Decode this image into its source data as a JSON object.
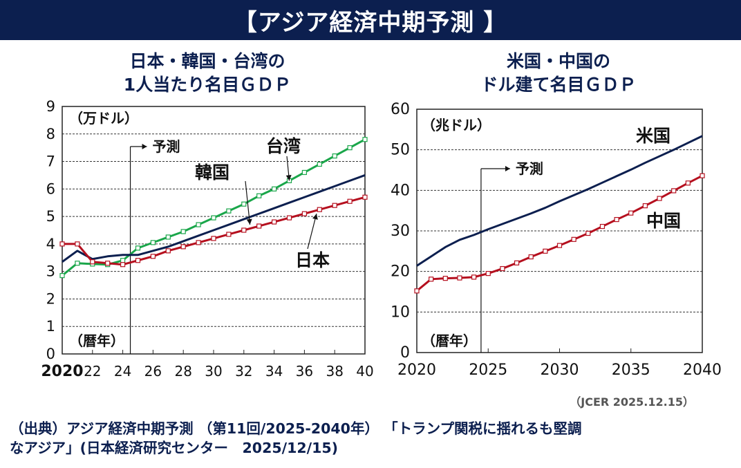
{
  "banner": {
    "title": "【アジア経済中期予測 】"
  },
  "left_title": {
    "line1": "日本・韓国・台湾の",
    "line2": "1人当たり名目ＧＤＰ"
  },
  "right_title": {
    "line1": "米国・中国の",
    "line2": "ドル建て名目ＧＤＰ"
  },
  "credit": "（JCER 2025.12.15）",
  "source": {
    "line1": "（出典）アジア経済中期予測 （第11回/2025-2040年） 「トランプ関税に揺れるも堅調",
    "line2": "なアジア」(日本経済研究センター　2025/12/15)"
  },
  "colors": {
    "navy": "#0c1f4f",
    "green": "#1aa64a",
    "red": "#b50f1e"
  },
  "chart_data": [
    {
      "type": "line",
      "ylabel": "（万ドル）",
      "xlabel": "（暦年）",
      "ylim": [
        0,
        9
      ],
      "xlim": [
        2020,
        2040
      ],
      "yticks": [
        "0",
        "1",
        "2",
        "3",
        "4",
        "5",
        "6",
        "7",
        "8",
        "9"
      ],
      "xticks": [
        {
          "v": 2020,
          "label": "2020"
        },
        {
          "v": 2022,
          "label": "22"
        },
        {
          "v": 2024,
          "label": "24"
        },
        {
          "v": 2026,
          "label": "26"
        },
        {
          "v": 2028,
          "label": "28"
        },
        {
          "v": 2030,
          "label": "30"
        },
        {
          "v": 2032,
          "label": "32"
        },
        {
          "v": 2034,
          "label": "34"
        },
        {
          "v": 2036,
          "label": "36"
        },
        {
          "v": 2038,
          "label": "38"
        },
        {
          "v": 2040,
          "label": "40"
        }
      ],
      "forecast": {
        "x": 2024.5,
        "label": "予測"
      },
      "grid": true,
      "series": [
        {
          "name": "台湾",
          "color": "#1aa64a",
          "marker": true,
          "x": [
            2020,
            2021,
            2022,
            2023,
            2024,
            2025,
            2026,
            2027,
            2028,
            2029,
            2030,
            2031,
            2032,
            2033,
            2034,
            2035,
            2036,
            2037,
            2038,
            2039,
            2040
          ],
          "y": [
            2.85,
            3.3,
            3.27,
            3.25,
            3.4,
            3.85,
            4.05,
            4.25,
            4.45,
            4.7,
            4.95,
            5.2,
            5.45,
            5.75,
            6.0,
            6.3,
            6.6,
            6.9,
            7.2,
            7.5,
            7.8
          ]
        },
        {
          "name": "韓国",
          "color": "#0c1f4f",
          "marker": false,
          "x": [
            2020,
            2021,
            2022,
            2023,
            2024,
            2025,
            2026,
            2027,
            2028,
            2029,
            2030,
            2031,
            2032,
            2033,
            2034,
            2035,
            2036,
            2037,
            2038,
            2039,
            2040
          ],
          "y": [
            3.35,
            3.75,
            3.45,
            3.55,
            3.6,
            3.6,
            3.75,
            3.9,
            4.1,
            4.3,
            4.5,
            4.7,
            4.9,
            5.1,
            5.3,
            5.5,
            5.7,
            5.9,
            6.1,
            6.3,
            6.5
          ]
        },
        {
          "name": "日本",
          "color": "#b50f1e",
          "marker": true,
          "x": [
            2020,
            2021,
            2022,
            2023,
            2024,
            2025,
            2026,
            2027,
            2028,
            2029,
            2030,
            2031,
            2032,
            2033,
            2034,
            2035,
            2036,
            2037,
            2038,
            2039,
            2040
          ],
          "y": [
            4.0,
            4.0,
            3.35,
            3.3,
            3.25,
            3.4,
            3.55,
            3.75,
            3.9,
            4.05,
            4.2,
            4.35,
            4.5,
            4.65,
            4.8,
            4.95,
            5.1,
            5.25,
            5.4,
            5.55,
            5.7
          ]
        }
      ],
      "labels": [
        {
          "series": "台湾",
          "text": "台湾"
        },
        {
          "series": "韓国",
          "text": "韓国"
        },
        {
          "series": "日本",
          "text": "日本"
        }
      ]
    },
    {
      "type": "line",
      "ylabel": "（兆ドル）",
      "xlabel": "（暦年）",
      "ylim": [
        0,
        60
      ],
      "xlim": [
        2020,
        2040
      ],
      "yticks": [
        "0",
        "10",
        "20",
        "30",
        "40",
        "50",
        "60"
      ],
      "xticks": [
        {
          "v": 2020,
          "label": "2020"
        },
        {
          "v": 2025,
          "label": "2025"
        },
        {
          "v": 2030,
          "label": "2030"
        },
        {
          "v": 2035,
          "label": "2035"
        },
        {
          "v": 2040,
          "label": "2040"
        }
      ],
      "forecast": {
        "x": 2024.5,
        "label": "予測"
      },
      "grid": true,
      "series": [
        {
          "name": "米国",
          "color": "#0c1f4f",
          "marker": false,
          "x": [
            2020,
            2021,
            2022,
            2023,
            2024,
            2025,
            2026,
            2027,
            2028,
            2029,
            2030,
            2031,
            2032,
            2033,
            2034,
            2035,
            2036,
            2037,
            2038,
            2039,
            2040
          ],
          "y": [
            21.4,
            23.7,
            26.0,
            27.8,
            29.0,
            30.4,
            31.7,
            33.0,
            34.3,
            35.7,
            37.3,
            38.8,
            40.3,
            41.9,
            43.5,
            45.1,
            46.8,
            48.4,
            50.0,
            51.7,
            53.4
          ]
        },
        {
          "name": "中国",
          "color": "#b50f1e",
          "marker": true,
          "x": [
            2020,
            2021,
            2022,
            2023,
            2024,
            2025,
            2026,
            2027,
            2028,
            2029,
            2030,
            2031,
            2032,
            2033,
            2034,
            2035,
            2036,
            2037,
            2038,
            2039,
            2040
          ],
          "y": [
            15.2,
            18.1,
            18.3,
            18.4,
            18.6,
            19.5,
            20.7,
            22.1,
            23.6,
            25.0,
            26.4,
            27.9,
            29.4,
            31.1,
            32.8,
            34.4,
            36.2,
            38.0,
            39.9,
            41.8,
            43.6
          ]
        }
      ],
      "labels": [
        {
          "series": "米国",
          "text": "米国"
        },
        {
          "series": "中国",
          "text": "中国"
        }
      ]
    }
  ]
}
